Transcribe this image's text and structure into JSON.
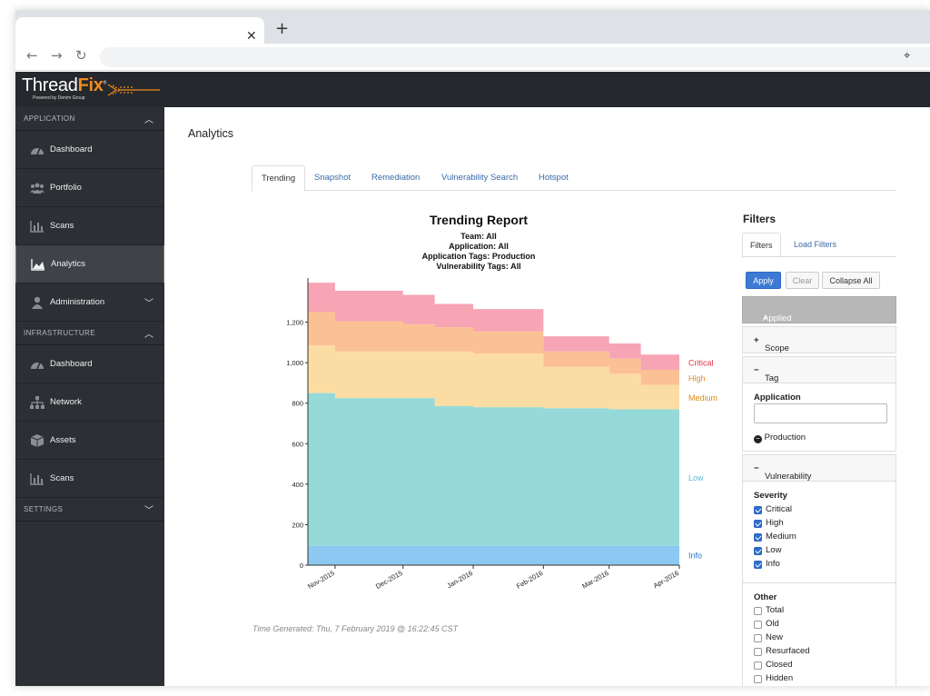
{
  "app": {
    "logo_text_a": "Thread",
    "logo_text_b": "Fix",
    "logo_tm": "®",
    "logo_sub": "Powered by Denim Group"
  },
  "sidebar": {
    "sections": [
      {
        "label": "APPLICATION",
        "items": [
          {
            "label": "Dashboard",
            "icon": "dashboard-icon"
          },
          {
            "label": "Portfolio",
            "icon": "users-icon"
          },
          {
            "label": "Scans",
            "icon": "bar-chart-icon"
          },
          {
            "label": "Analytics",
            "icon": "area-chart-icon"
          },
          {
            "label": "Administration",
            "icon": "user-icon"
          }
        ]
      },
      {
        "label": "INFRASTRUCTURE",
        "items": [
          {
            "label": "Dashboard",
            "icon": "dashboard-icon"
          },
          {
            "label": "Network",
            "icon": "sitemap-icon"
          },
          {
            "label": "Assets",
            "icon": "cube-icon"
          },
          {
            "label": "Scans",
            "icon": "bar-chart-icon"
          }
        ]
      },
      {
        "label": "SETTINGS",
        "items": []
      }
    ]
  },
  "main": {
    "title": "Analytics",
    "tabs": [
      "Trending",
      "Snapshot",
      "Remediation",
      "Vulnerability Search",
      "Hotspot"
    ],
    "active_tab": "Trending",
    "time_generated": "Time Generated: Thu, 7 February 2019 @ 16:22:45 CST"
  },
  "report": {
    "title": "Trending Report",
    "team": "Team: All",
    "application": "Application: All",
    "app_tags": "Application Tags: Production",
    "vuln_tags": "Vulnerability Tags: All"
  },
  "chart_data": {
    "type": "area",
    "stacked": true,
    "x": [
      "2015-10-20",
      "2015-11-01",
      "2015-11-15",
      "2015-12-01",
      "2015-12-15",
      "2016-01-01",
      "2016-01-15",
      "2016-02-01",
      "2016-02-15",
      "2016-03-01",
      "2016-03-15",
      "2016-04-01"
    ],
    "x_ticks": [
      "Nov-2015",
      "Dec-2015",
      "Jan-2016",
      "Feb-2016",
      "Mar-2016",
      "Apr-2016"
    ],
    "y_ticks": [
      0,
      200,
      400,
      600,
      800,
      1000,
      1200
    ],
    "ylim": [
      0,
      1400
    ],
    "series": [
      {
        "name": "Info",
        "color": "#8cc8f2",
        "label_color": "#2b73c9",
        "values": [
          95,
          95,
          95,
          95,
          95,
          95,
          95,
          95,
          95,
          95,
          95,
          95
        ]
      },
      {
        "name": "Low",
        "color": "#95d9d9",
        "label_color": "#5cb8d8",
        "values": [
          755,
          730,
          730,
          730,
          690,
          685,
          685,
          680,
          680,
          675,
          675,
          670
        ]
      },
      {
        "name": "Medium",
        "color": "#fbdda3",
        "label_color": "#e08a1a",
        "values": [
          235,
          230,
          230,
          230,
          270,
          265,
          265,
          205,
          205,
          175,
          120,
          120
        ]
      },
      {
        "name": "High",
        "color": "#fbc194",
        "label_color": "#e08a1a",
        "values": [
          165,
          150,
          150,
          135,
          120,
          110,
          110,
          75,
          75,
          75,
          75,
          75
        ]
      },
      {
        "name": "Critical",
        "color": "#f7a4b5",
        "label_color": "#e0344b",
        "values": [
          145,
          150,
          150,
          145,
          115,
          110,
          110,
          75,
          75,
          75,
          75,
          75
        ]
      }
    ]
  },
  "filters": {
    "title": "Filters",
    "tabs": [
      "Filters",
      "Load Filters"
    ],
    "buttons": {
      "apply": "Apply",
      "clear": "Clear",
      "collapse": "Collapse All"
    },
    "applied": "Applied Filters",
    "scope": "Scope",
    "tag": "Tag",
    "application_label": "Application",
    "application_value": "",
    "production_tag": "Production",
    "vuln_detail": "Vulnerability Detail",
    "severity_label": "Severity",
    "severity": [
      {
        "label": "Critical",
        "checked": true
      },
      {
        "label": "High",
        "checked": true
      },
      {
        "label": "Medium",
        "checked": true
      },
      {
        "label": "Low",
        "checked": true
      },
      {
        "label": "Info",
        "checked": true
      }
    ],
    "other_label": "Other",
    "other": [
      {
        "label": "Total",
        "checked": false
      },
      {
        "label": "Old",
        "checked": false
      },
      {
        "label": "New",
        "checked": false
      },
      {
        "label": "Resurfaced",
        "checked": false
      },
      {
        "label": "Closed",
        "checked": false
      },
      {
        "label": "Hidden",
        "checked": false
      }
    ]
  }
}
